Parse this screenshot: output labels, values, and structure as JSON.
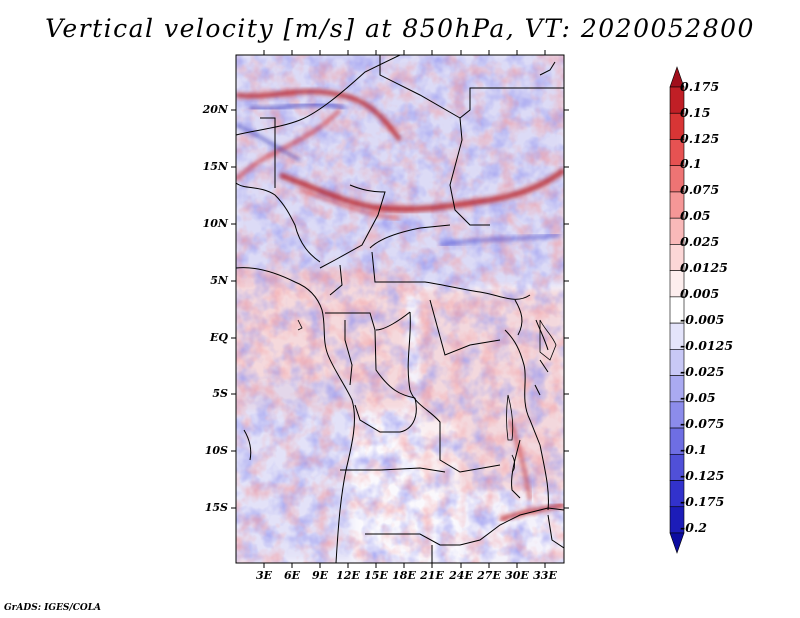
{
  "title": "Vertical velocity [m/s] at 850hPa, VT: 2020052800",
  "footer": "GrADS: IGES/COLA",
  "map": {
    "variable": "Vertical velocity",
    "units": "m/s",
    "level": "850hPa",
    "valid_time": "2020052800",
    "lat_labels": [
      "20N",
      "15N",
      "10N",
      "5N",
      "EQ",
      "5S",
      "10S",
      "15S"
    ],
    "lon_labels": [
      "3E",
      "6E",
      "9E",
      "12E",
      "15E",
      "18E",
      "21E",
      "24E",
      "27E",
      "30E",
      "33E"
    ]
  },
  "colorbar": {
    "levels": [
      "0.175",
      "0.15",
      "0.125",
      "0.1",
      "0.075",
      "0.05",
      "0.025",
      "0.0125",
      "0.005",
      "-0.005",
      "-0.0125",
      "-0.025",
      "-0.05",
      "-0.075",
      "-0.1",
      "-0.125",
      "-0.175",
      "-0.2"
    ],
    "colors": [
      "#a00f1c",
      "#c01f26",
      "#d83535",
      "#e65252",
      "#ee7474",
      "#f59797",
      "#f9b9b9",
      "#fcd7d7",
      "#fdeeee",
      "#ffffff",
      "#e4e4fb",
      "#c8c8f6",
      "#aaaaf1",
      "#8c8ceb",
      "#6e6ee3",
      "#5050d8",
      "#3232cc",
      "#1c1cb8",
      "#0c0ca0"
    ]
  }
}
